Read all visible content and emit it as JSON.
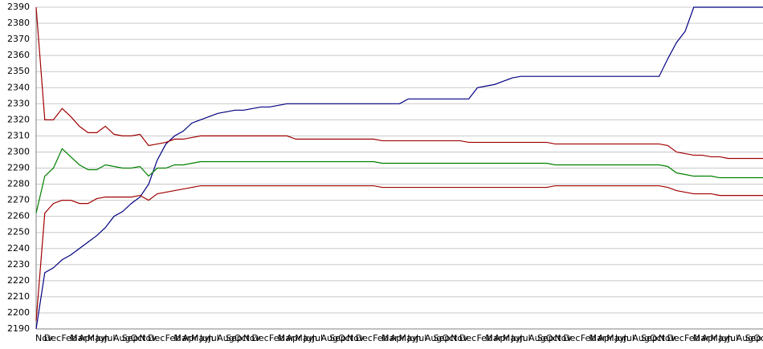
{
  "chart_data": {
    "type": "line",
    "categories": [
      "Nov",
      "Dec",
      null,
      "Feb",
      "Mar",
      "Apr",
      "May",
      "Jun",
      "Jul",
      "Aug",
      "Sep",
      "Oct",
      "Nov",
      "Dec",
      null,
      "Feb",
      "Mar",
      "Apr",
      "May",
      "Jun",
      "Jul",
      "Aug",
      "Sep",
      "Oct",
      "Nov",
      "Dec",
      null,
      "Feb",
      "Mar",
      "Apr",
      "May",
      "Jun",
      "Jul",
      "Aug",
      "Sep",
      "Oct",
      "Nov",
      "Dec",
      null,
      "Feb",
      "Mar",
      "Apr",
      "May",
      "Jun",
      "Jul",
      "Aug",
      "Sep",
      "Oct",
      "Nov",
      "Dec",
      null,
      "Feb",
      "Mar",
      "Apr",
      "May",
      "Jun",
      "Jul",
      "Aug",
      "Sep",
      "Oct",
      "Nov",
      "Dec",
      null,
      "Feb",
      "Mar",
      "Apr",
      "May",
      "Jun",
      "Jul",
      "Aug",
      "Sep",
      "Oct",
      "Nov",
      "Dec",
      null,
      "Feb",
      "Mar",
      "Apr",
      "May",
      "Jun",
      "Jul",
      "Aug",
      "Sep",
      "Oct",
      "Nov"
    ],
    "series": [
      {
        "color": "#000080",
        "values": [
          2190,
          2225,
          2228,
          2233,
          2236,
          2240,
          2244,
          2248,
          2253,
          2260,
          2263,
          2268,
          2272,
          2280,
          2295,
          2305,
          2310,
          2313,
          2318,
          2320,
          2322,
          2324,
          2325,
          2326,
          2326,
          2327,
          2328,
          2328,
          2329,
          2330,
          2330,
          2330,
          2330,
          2330,
          2330,
          2330,
          2330,
          2330,
          2330,
          2330,
          2330,
          2330,
          2330,
          2333,
          2333,
          2333,
          2333,
          2333,
          2333,
          2333,
          2333,
          2340,
          2341,
          2342,
          2344,
          2346,
          2347,
          2347,
          2347,
          2347,
          2347,
          2347,
          2347,
          2347,
          2347,
          2347,
          2347,
          2347,
          2347,
          2347,
          2347,
          2347,
          2347,
          2358,
          2368,
          2375,
          2390,
          2390,
          2390,
          2390,
          2390,
          2390,
          2390,
          2390,
          2390
        ]
      },
      {
        "color": "#a00000",
        "values": [
          2390,
          2320,
          2320,
          2327,
          2322,
          2316,
          2312,
          2312,
          2316,
          2311,
          2310,
          2310,
          2311,
          2304,
          2305,
          2306,
          2308,
          2308,
          2309,
          2310,
          2310,
          2310,
          2310,
          2310,
          2310,
          2310,
          2310,
          2310,
          2310,
          2310,
          2308,
          2308,
          2308,
          2308,
          2308,
          2308,
          2308,
          2308,
          2308,
          2308,
          2307,
          2307,
          2307,
          2307,
          2307,
          2307,
          2307,
          2307,
          2307,
          2307,
          2306,
          2306,
          2306,
          2306,
          2306,
          2306,
          2306,
          2306,
          2306,
          2306,
          2305,
          2305,
          2305,
          2305,
          2305,
          2305,
          2305,
          2305,
          2305,
          2305,
          2305,
          2305,
          2305,
          2304,
          2300,
          2299,
          2298,
          2298,
          2297,
          2297,
          2296,
          2296,
          2296,
          2296,
          2296
        ]
      },
      {
        "color": "#008000",
        "values": [
          2262,
          2285,
          2290,
          2302,
          2297,
          2292,
          2289,
          2289,
          2292,
          2291,
          2290,
          2290,
          2291,
          2285,
          2290,
          2290,
          2292,
          2292,
          2293,
          2294,
          2294,
          2294,
          2294,
          2294,
          2294,
          2294,
          2294,
          2294,
          2294,
          2294,
          2294,
          2294,
          2294,
          2294,
          2294,
          2294,
          2294,
          2294,
          2294,
          2294,
          2293,
          2293,
          2293,
          2293,
          2293,
          2293,
          2293,
          2293,
          2293,
          2293,
          2293,
          2293,
          2293,
          2293,
          2293,
          2293,
          2293,
          2293,
          2293,
          2293,
          2292,
          2292,
          2292,
          2292,
          2292,
          2292,
          2292,
          2292,
          2292,
          2292,
          2292,
          2292,
          2292,
          2291,
          2287,
          2286,
          2285,
          2285,
          2285,
          2284,
          2284,
          2284,
          2284,
          2284,
          2284
        ]
      },
      {
        "color": "#a00000",
        "values": [
          2195,
          2262,
          2268,
          2270,
          2270,
          2268,
          2268,
          2271,
          2272,
          2272,
          2272,
          2272,
          2273,
          2270,
          2274,
          2275,
          2276,
          2277,
          2278,
          2279,
          2279,
          2279,
          2279,
          2279,
          2279,
          2279,
          2279,
          2279,
          2279,
          2279,
          2279,
          2279,
          2279,
          2279,
          2279,
          2279,
          2279,
          2279,
          2279,
          2279,
          2278,
          2278,
          2278,
          2278,
          2278,
          2278,
          2278,
          2278,
          2278,
          2278,
          2278,
          2278,
          2278,
          2278,
          2278,
          2278,
          2278,
          2278,
          2278,
          2278,
          2279,
          2279,
          2279,
          2279,
          2279,
          2279,
          2279,
          2279,
          2279,
          2279,
          2279,
          2279,
          2279,
          2278,
          2276,
          2275,
          2274,
          2274,
          2274,
          2273,
          2273,
          2273,
          2273,
          2273,
          2273
        ]
      }
    ],
    "ylim": [
      2190,
      2390
    ],
    "yticks": [
      2190,
      2200,
      2210,
      2220,
      2230,
      2240,
      2250,
      2260,
      2270,
      2280,
      2290,
      2300,
      2310,
      2320,
      2330,
      2340,
      2350,
      2360,
      2370,
      2380,
      2390
    ],
    "grid": true
  }
}
